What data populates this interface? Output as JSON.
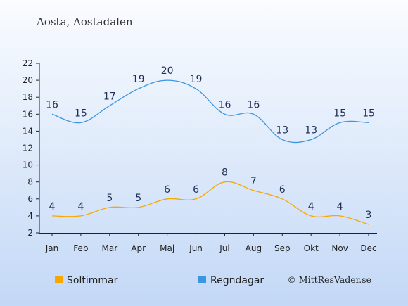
{
  "chart_data": {
    "type": "line",
    "title": "Aosta, Aostadalen",
    "categories": [
      "Jan",
      "Feb",
      "Mar",
      "Apr",
      "Maj",
      "Jun",
      "Jul",
      "Aug",
      "Sep",
      "Okt",
      "Nov",
      "Dec"
    ],
    "y_ticks": [
      "2",
      "4",
      "6",
      "8",
      "10",
      "12",
      "14",
      "16",
      "18",
      "20",
      "22"
    ],
    "ylim": [
      2,
      22
    ],
    "grid": false,
    "legend_position": "bottom-left",
    "series": [
      {
        "name": "Soltimmar",
        "color": "#f7a700",
        "values": [
          4,
          4,
          5,
          5,
          6,
          6,
          8,
          7,
          6,
          4,
          4,
          3
        ]
      },
      {
        "name": "Regndagar",
        "color": "#3b96e0",
        "values": [
          16,
          15,
          17,
          19,
          20,
          19,
          16,
          16,
          13,
          13,
          15,
          15
        ]
      }
    ],
    "credit": "© MittResVader.se"
  }
}
